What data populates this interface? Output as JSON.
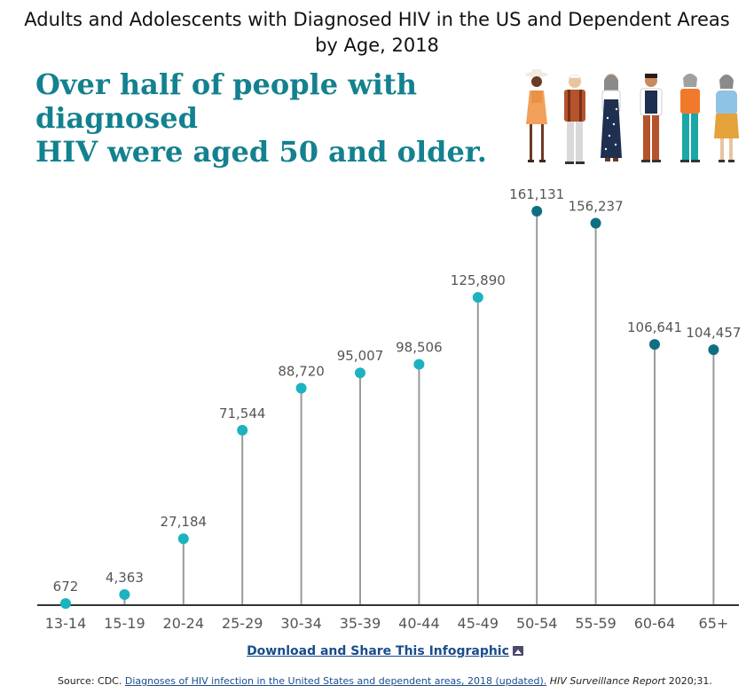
{
  "title_line1": "Adults and Adolescents with Diagnosed HIV in the US and Dependent Areas",
  "title_line2": "by Age, 2018",
  "headline_line1": "Over half of people with diagnosed",
  "headline_line2": "HIV were aged 50 and older.",
  "download_label": "Download and Share This Infographic",
  "source": {
    "prefix": "Source: CDC.",
    "link_text": "Diagnoses of HIV infection in the United States and dependent areas, 2018 (updated).",
    "italic": "HIV Surveillance Report",
    "suffix": "2020;31."
  },
  "colors": {
    "headline": "#13818f",
    "dot_under_50": "#1bb3c0",
    "dot_50_plus": "#0f6f82",
    "stem": "#9a9a9a",
    "axis": "#333333"
  },
  "chart_data": {
    "type": "lollipop",
    "categories": [
      "13-14",
      "15-19",
      "20-24",
      "25-29",
      "30-34",
      "35-39",
      "40-44",
      "45-49",
      "50-54",
      "55-59",
      "60-64",
      "65+"
    ],
    "values": [
      672,
      4363,
      27184,
      71544,
      88720,
      95007,
      98506,
      125890,
      161131,
      156237,
      106641,
      104457
    ],
    "value_labels": [
      "672",
      "4,363",
      "27,184",
      "71,544",
      "88,720",
      "95,007",
      "98,506",
      "125,890",
      "161,131",
      "156,237",
      "106,641",
      "104,457"
    ],
    "ylim": [
      0,
      161131
    ],
    "grid": false,
    "legend": "none"
  }
}
